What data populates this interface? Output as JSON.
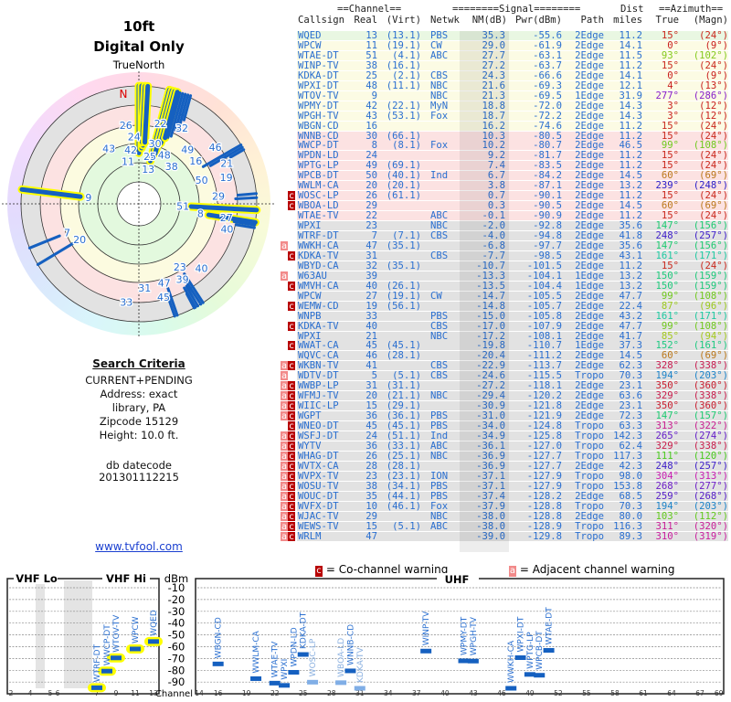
{
  "polar": {
    "height_label": "10ft",
    "mode_label": "Digital Only",
    "north_label": "TrueNorth",
    "n_marker": "N"
  },
  "criteria": {
    "title": "Search Criteria",
    "lines": [
      "CURRENT+PENDING",
      "Address: exact",
      "library, PA",
      "Zipcode 15129",
      "Height: 10.0 ft."
    ],
    "db_label": "db datecode",
    "db_value": "201301112215",
    "link": "www.tvfool.com"
  },
  "table": {
    "group_channel": "==Channel==",
    "group_signal": "========Signal========",
    "group_azimuth": "==Azimuth==",
    "headers": {
      "callsign": "Callsign",
      "real": "Real",
      "virt": "(Virt)",
      "netwk": "Netwk",
      "nm": "NM(dB)",
      "pwr": "Pwr(dBm)",
      "path": "Path",
      "dist_top": "Dist",
      "dist": "miles",
      "true": "True",
      "magn": "(Magn)"
    },
    "row_colors": {
      "g": "#e9f7e2",
      "y": "#fcfbe4",
      "p": "#fce2e2",
      "x": "#e2e2e2"
    },
    "rows": [
      {
        "flags": "",
        "call": "WQED",
        "real": "13",
        "virt": "(13.1)",
        "netwk": "PBS",
        "nm": "35.3",
        "pwr": "-55.6",
        "path": "2Edge",
        "dist": "11.2",
        "true": "15°",
        "magn": "(24°)",
        "band": "g"
      },
      {
        "flags": "",
        "call": "WPCW",
        "real": "11",
        "virt": "(19.1)",
        "netwk": "CW",
        "nm": "29.0",
        "pwr": "-61.9",
        "path": "2Edge",
        "dist": "14.1",
        "true": "0°",
        "magn": "(9°)",
        "band": "y"
      },
      {
        "flags": "",
        "call": "WTAE-DT",
        "real": "51",
        "virt": "(4.1)",
        "netwk": "ABC",
        "nm": "27.7",
        "pwr": "-63.1",
        "path": "2Edge",
        "dist": "11.5",
        "true": "93°",
        "magn": "(102°)",
        "band": "y"
      },
      {
        "flags": "",
        "call": "WINP-TV",
        "real": "38",
        "virt": "(16.1)",
        "netwk": "",
        "nm": "27.2",
        "pwr": "-63.7",
        "path": "2Edge",
        "dist": "11.2",
        "true": "15°",
        "magn": "(24°)",
        "band": "y"
      },
      {
        "flags": "",
        "call": "KDKA-DT",
        "real": "25",
        "virt": "(2.1)",
        "netwk": "CBS",
        "nm": "24.3",
        "pwr": "-66.6",
        "path": "2Edge",
        "dist": "14.1",
        "true": "0°",
        "magn": "(9°)",
        "band": "y"
      },
      {
        "flags": "",
        "call": "WPXI-DT",
        "real": "48",
        "virt": "(11.1)",
        "netwk": "NBC",
        "nm": "21.6",
        "pwr": "-69.3",
        "path": "2Edge",
        "dist": "12.1",
        "true": "4°",
        "magn": "(13°)",
        "band": "y"
      },
      {
        "flags": "",
        "call": "WTOV-TV",
        "real": "9",
        "virt": "",
        "netwk": "NBC",
        "nm": "21.3",
        "pwr": "-69.5",
        "path": "1Edge",
        "dist": "31.9",
        "true": "277°",
        "magn": "(286°)",
        "band": "y"
      },
      {
        "flags": "",
        "call": "WPMY-DT",
        "real": "42",
        "virt": "(22.1)",
        "netwk": "MyN",
        "nm": "18.8",
        "pwr": "-72.0",
        "path": "2Edge",
        "dist": "14.3",
        "true": "3°",
        "magn": "(12°)",
        "band": "y"
      },
      {
        "flags": "",
        "call": "WPGH-TV",
        "real": "43",
        "virt": "(53.1)",
        "netwk": "Fox",
        "nm": "18.7",
        "pwr": "-72.2",
        "path": "2Edge",
        "dist": "14.3",
        "true": "3°",
        "magn": "(12°)",
        "band": "y"
      },
      {
        "flags": "",
        "call": "WBGN-CD",
        "real": "16",
        "virt": "",
        "netwk": "",
        "nm": "16.2",
        "pwr": "-74.6",
        "path": "2Edge",
        "dist": "11.2",
        "true": "15°",
        "magn": "(24°)",
        "band": "y"
      },
      {
        "flags": "",
        "call": "WNNB-CD",
        "real": "30",
        "virt": "(66.1)",
        "netwk": "",
        "nm": "10.3",
        "pwr": "-80.5",
        "path": "2Edge",
        "dist": "11.2",
        "true": "15°",
        "magn": "(24°)",
        "band": "p"
      },
      {
        "flags": "",
        "call": "WWCP-DT",
        "real": "8",
        "virt": "(8.1)",
        "netwk": "Fox",
        "nm": "10.2",
        "pwr": "-80.7",
        "path": "2Edge",
        "dist": "46.5",
        "true": "99°",
        "magn": "(108°)",
        "band": "p"
      },
      {
        "flags": "",
        "call": "WPDN-LD",
        "real": "24",
        "virt": "",
        "netwk": "",
        "nm": "9.2",
        "pwr": "-81.7",
        "path": "2Edge",
        "dist": "11.2",
        "true": "15°",
        "magn": "(24°)",
        "band": "p"
      },
      {
        "flags": "",
        "call": "WPTG-LP",
        "real": "49",
        "virt": "(69.1)",
        "netwk": "",
        "nm": "7.4",
        "pwr": "-83.5",
        "path": "2Edge",
        "dist": "11.2",
        "true": "15°",
        "magn": "(24°)",
        "band": "p"
      },
      {
        "flags": "",
        "call": "WPCB-DT",
        "real": "50",
        "virt": "(40.1)",
        "netwk": "Ind",
        "nm": "6.7",
        "pwr": "-84.2",
        "path": "2Edge",
        "dist": "14.5",
        "true": "60°",
        "magn": "(69°)",
        "band": "p"
      },
      {
        "flags": "",
        "call": "WWLM-CA",
        "real": "20",
        "virt": "(20.1)",
        "netwk": "",
        "nm": "3.8",
        "pwr": "-87.1",
        "path": "2Edge",
        "dist": "13.2",
        "true": "239°",
        "magn": "(248°)",
        "band": "p"
      },
      {
        "flags": "c",
        "call": "WOSC-LP",
        "real": "26",
        "virt": "(61.1)",
        "netwk": "",
        "nm": "0.7",
        "pwr": "-90.1",
        "path": "2Edge",
        "dist": "11.2",
        "true": "15°",
        "magn": "(24°)",
        "band": "p"
      },
      {
        "flags": "c",
        "call": "WBOA-LD",
        "real": "29",
        "virt": "",
        "netwk": "",
        "nm": "0.3",
        "pwr": "-90.5",
        "path": "2Edge",
        "dist": "14.5",
        "true": "60°",
        "magn": "(69°)",
        "band": "p"
      },
      {
        "flags": "",
        "call": "WTAE-TV",
        "real": "22",
        "virt": "",
        "netwk": "ABC",
        "nm": "-0.1",
        "pwr": "-90.9",
        "path": "2Edge",
        "dist": "11.2",
        "true": "15°",
        "magn": "(24°)",
        "band": "p"
      },
      {
        "flags": "",
        "call": "WPXI",
        "real": "23",
        "virt": "",
        "netwk": "NBC",
        "nm": "-2.0",
        "pwr": "-92.8",
        "path": "2Edge",
        "dist": "35.6",
        "true": "147°",
        "magn": "(156°)",
        "band": "x"
      },
      {
        "flags": "",
        "call": "WTRF-DT",
        "real": "7",
        "virt": "(7.1)",
        "netwk": "CBS",
        "nm": "-4.0",
        "pwr": "-94.8",
        "path": "2Edge",
        "dist": "41.8",
        "true": "248°",
        "magn": "(257°)",
        "band": "x"
      },
      {
        "flags": "a",
        "call": "WWKH-CA",
        "real": "47",
        "virt": "(35.1)",
        "netwk": "",
        "nm": "-6.8",
        "pwr": "-97.7",
        "path": "2Edge",
        "dist": "35.6",
        "true": "147°",
        "magn": "(156°)",
        "band": "x"
      },
      {
        "flags": "c",
        "call": "KDKA-TV",
        "real": "31",
        "virt": "",
        "netwk": "CBS",
        "nm": "-7.7",
        "pwr": "-98.5",
        "path": "2Edge",
        "dist": "43.1",
        "true": "161°",
        "magn": "(171°)",
        "band": "x"
      },
      {
        "flags": "",
        "call": "WBYD-CA",
        "real": "32",
        "virt": "(35.1)",
        "netwk": "",
        "nm": "-10.7",
        "pwr": "-101.5",
        "path": "2Edge",
        "dist": "11.2",
        "true": "15°",
        "magn": "(24°)",
        "band": "x"
      },
      {
        "flags": "a",
        "call": "W63AU",
        "real": "39",
        "virt": "",
        "netwk": "",
        "nm": "-13.3",
        "pwr": "-104.1",
        "path": "1Edge",
        "dist": "13.2",
        "true": "150°",
        "magn": "(159°)",
        "band": "x"
      },
      {
        "flags": "c",
        "call": "WMVH-CA",
        "real": "40",
        "virt": "(26.1)",
        "netwk": "",
        "nm": "-13.5",
        "pwr": "-104.4",
        "path": "1Edge",
        "dist": "13.2",
        "true": "150°",
        "magn": "(159°)",
        "band": "x"
      },
      {
        "flags": "",
        "call": "WPCW",
        "real": "27",
        "virt": "(19.1)",
        "netwk": "CW",
        "nm": "-14.7",
        "pwr": "-105.5",
        "path": "2Edge",
        "dist": "47.7",
        "true": "99°",
        "magn": "(108°)",
        "band": "x"
      },
      {
        "flags": "c",
        "call": "WEMW-CD",
        "real": "19",
        "virt": "(56.1)",
        "netwk": "",
        "nm": "-14.8",
        "pwr": "-105.7",
        "path": "2Edge",
        "dist": "22.4",
        "true": "87°",
        "magn": "(96°)",
        "band": "x"
      },
      {
        "flags": "",
        "call": "WNPB",
        "real": "33",
        "virt": "",
        "netwk": "PBS",
        "nm": "-15.0",
        "pwr": "-105.8",
        "path": "2Edge",
        "dist": "43.2",
        "true": "161°",
        "magn": "(171°)",
        "band": "x"
      },
      {
        "flags": "c",
        "call": "KDKA-TV",
        "real": "40",
        "virt": "",
        "netwk": "CBS",
        "nm": "-17.0",
        "pwr": "-107.9",
        "path": "2Edge",
        "dist": "47.7",
        "true": "99°",
        "magn": "(108°)",
        "band": "x"
      },
      {
        "flags": "",
        "call": "WPXI",
        "real": "21",
        "virt": "",
        "netwk": "NBC",
        "nm": "-17.2",
        "pwr": "-108.1",
        "path": "2Edge",
        "dist": "41.7",
        "true": "85°",
        "magn": "(94°)",
        "band": "x"
      },
      {
        "flags": "c",
        "call": "WWAT-CA",
        "real": "45",
        "virt": "(45.1)",
        "netwk": "",
        "nm": "-19.8",
        "pwr": "-110.7",
        "path": "1Edge",
        "dist": "37.3",
        "true": "152°",
        "magn": "(161°)",
        "band": "x"
      },
      {
        "flags": "",
        "call": "WQVC-CA",
        "real": "46",
        "virt": "(28.1)",
        "netwk": "",
        "nm": "-20.4",
        "pwr": "-111.2",
        "path": "2Edge",
        "dist": "14.5",
        "true": "60°",
        "magn": "(69°)",
        "band": "x"
      },
      {
        "flags": "ac",
        "call": "WKBN-TV",
        "real": "41",
        "virt": "",
        "netwk": "CBS",
        "nm": "-22.9",
        "pwr": "-113.7",
        "path": "2Edge",
        "dist": "62.3",
        "true": "328°",
        "magn": "(338°)",
        "band": "x"
      },
      {
        "flags": "a",
        "call": "WDTV-DT",
        "real": "5",
        "virt": "(5.1)",
        "netwk": "CBS",
        "nm": "-24.6",
        "pwr": "-115.5",
        "path": "Tropo",
        "dist": "70.3",
        "true": "194°",
        "magn": "(203°)",
        "band": "x"
      },
      {
        "flags": "ac",
        "call": "WWBP-LP",
        "real": "31",
        "virt": "(31.1)",
        "netwk": "",
        "nm": "-27.2",
        "pwr": "-118.1",
        "path": "2Edge",
        "dist": "23.1",
        "true": "350°",
        "magn": "(360°)",
        "band": "x"
      },
      {
        "flags": "ac",
        "call": "WFMJ-TV",
        "real": "20",
        "virt": "(21.1)",
        "netwk": "NBC",
        "nm": "-29.4",
        "pwr": "-120.2",
        "path": "2Edge",
        "dist": "63.6",
        "true": "329°",
        "magn": "(338°)",
        "band": "x"
      },
      {
        "flags": "ac",
        "call": "WIIC-LP",
        "real": "15",
        "virt": "(29.1)",
        "netwk": "",
        "nm": "-30.9",
        "pwr": "-121.8",
        "path": "2Edge",
        "dist": "23.1",
        "true": "350°",
        "magn": "(360°)",
        "band": "x"
      },
      {
        "flags": "ac",
        "call": "WGPT",
        "real": "36",
        "virt": "(36.1)",
        "netwk": "PBS",
        "nm": "-31.0",
        "pwr": "-121.9",
        "path": "2Edge",
        "dist": "72.3",
        "true": "147°",
        "magn": "(157°)",
        "band": "x"
      },
      {
        "flags": "c",
        "call": "WNEO-DT",
        "real": "45",
        "virt": "(45.1)",
        "netwk": "PBS",
        "nm": "-34.0",
        "pwr": "-124.8",
        "path": "Tropo",
        "dist": "63.3",
        "true": "313°",
        "magn": "(322°)",
        "band": "x"
      },
      {
        "flags": "ac",
        "call": "WSFJ-DT",
        "real": "24",
        "virt": "(51.1)",
        "netwk": "Ind",
        "nm": "-34.9",
        "pwr": "-125.8",
        "path": "Tropo",
        "dist": "142.3",
        "true": "265°",
        "magn": "(274°)",
        "band": "x"
      },
      {
        "flags": "ac",
        "call": "WYTV",
        "real": "36",
        "virt": "(33.1)",
        "netwk": "ABC",
        "nm": "-36.1",
        "pwr": "-127.0",
        "path": "Tropo",
        "dist": "62.4",
        "true": "329°",
        "magn": "(338°)",
        "band": "x"
      },
      {
        "flags": "ac",
        "call": "WHAG-DT",
        "real": "26",
        "virt": "(25.1)",
        "netwk": "NBC",
        "nm": "-36.9",
        "pwr": "-127.7",
        "path": "Tropo",
        "dist": "117.3",
        "true": "111°",
        "magn": "(120°)",
        "band": "x"
      },
      {
        "flags": "ac",
        "call": "WVTX-CA",
        "real": "28",
        "virt": "(28.1)",
        "netwk": "",
        "nm": "-36.9",
        "pwr": "-127.7",
        "path": "2Edge",
        "dist": "42.3",
        "true": "248°",
        "magn": "(257°)",
        "band": "x"
      },
      {
        "flags": "ac",
        "call": "WVPX-TV",
        "real": "23",
        "virt": "(23.1)",
        "netwk": "ION",
        "nm": "-37.1",
        "pwr": "-127.9",
        "path": "Tropo",
        "dist": "98.0",
        "true": "304°",
        "magn": "(313°)",
        "band": "x"
      },
      {
        "flags": "ac",
        "call": "WOSU-TV",
        "real": "38",
        "virt": "(34.1)",
        "netwk": "PBS",
        "nm": "-37.1",
        "pwr": "-127.9",
        "path": "Tropo",
        "dist": "153.8",
        "true": "268°",
        "magn": "(277°)",
        "band": "x"
      },
      {
        "flags": "ac",
        "call": "WOUC-DT",
        "real": "35",
        "virt": "(44.1)",
        "netwk": "PBS",
        "nm": "-37.4",
        "pwr": "-128.2",
        "path": "2Edge",
        "dist": "68.5",
        "true": "259°",
        "magn": "(268°)",
        "band": "x"
      },
      {
        "flags": "ac",
        "call": "WVFX-DT",
        "real": "10",
        "virt": "(46.1)",
        "netwk": "Fox",
        "nm": "-37.9",
        "pwr": "-128.8",
        "path": "Tropo",
        "dist": "70.3",
        "true": "194°",
        "magn": "(203°)",
        "band": "x"
      },
      {
        "flags": "ac",
        "call": "WJAC-TV",
        "real": "29",
        "virt": "",
        "netwk": "NBC",
        "nm": "-38.0",
        "pwr": "-128.8",
        "path": "2Edge",
        "dist": "80.0",
        "true": "103°",
        "magn": "(112°)",
        "band": "x"
      },
      {
        "flags": "ac",
        "call": "WEWS-TV",
        "real": "15",
        "virt": "(5.1)",
        "netwk": "ABC",
        "nm": "-38.0",
        "pwr": "-128.9",
        "path": "Tropo",
        "dist": "116.3",
        "true": "311°",
        "magn": "(320°)",
        "band": "x"
      },
      {
        "flags": "ac",
        "call": "WRLM",
        "real": "47",
        "virt": "",
        "netwk": "",
        "nm": "-39.0",
        "pwr": "-129.8",
        "path": "Tropo",
        "dist": "89.3",
        "true": "310°",
        "magn": "(319°)",
        "band": "x"
      }
    ]
  },
  "legend": {
    "co_flag": "c",
    "co_text": "= Co-channel warning",
    "adj_flag": "a",
    "adj_text": "= Adjacent channel warning"
  },
  "spectrum": {
    "vhf_lo": "VHF Lo",
    "vhf_hi": "VHF Hi",
    "uhf": "UHF",
    "unit": "dBm",
    "channel_label": "Channel",
    "dbm_ticks": [
      "-10",
      "-20",
      "-30",
      "-40",
      "-50",
      "-60",
      "-70",
      "-80",
      "-90"
    ],
    "vhf_channel_ticks": [
      "2",
      "4",
      "5",
      "6",
      "7",
      "9",
      "11",
      "13"
    ],
    "uhf_channel_ticks": [
      "14",
      "16",
      "19",
      "22",
      "25",
      "28",
      "31",
      "34",
      "37",
      "40",
      "43",
      "46",
      "49",
      "52",
      "55",
      "58",
      "61",
      "64",
      "67",
      "69"
    ]
  },
  "colors": {
    "bar": "#1560c0",
    "bar_warn": "#80aee6",
    "highlight": "#ffff00",
    "text_blue": "#2a6fd0",
    "flag_co": "#b80000",
    "flag_adj": "#f28a8a"
  }
}
